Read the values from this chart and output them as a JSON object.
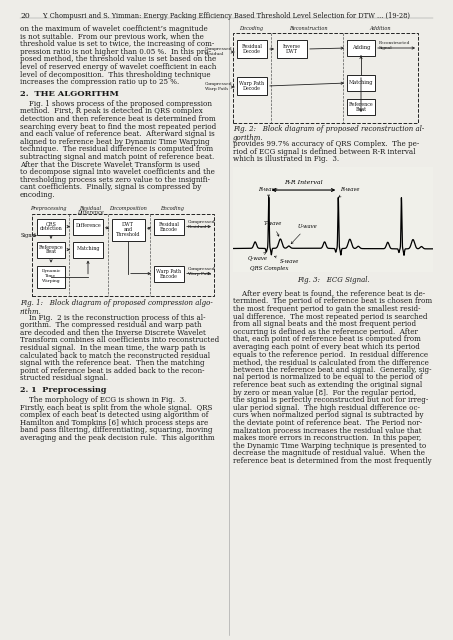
{
  "page_number": "20",
  "header": "Y. Chompusri and S. Yimman: Energy Packing Efficiency Based Threshold Level Selection for DTW ... (19-28)",
  "bg_color": "#eeede8",
  "left_para1": [
    "on the maximum of wavelet coefficient’s magnitude",
    "is not suitable.  From our previous work, when the",
    "threshold value is set to twice, the increasing of com-",
    "pression ratio is not higher than 0.05 %.  In this pro-",
    "posed method, the threshold value is set based on the",
    "level of reserved energy of wavelet coefficient in each",
    "level of decomposition.  This thresholding technique",
    "increases the compression ratio up to 25 %."
  ],
  "sec2_title": "2.  THE ALGORITHM",
  "left_para2": [
    "    Fig. 1 shows process of the proposed compression",
    "method.  First, R peak is detected in QRS complex",
    "detection and then reference beat is determined from",
    "searching every beat to find the most repeated period",
    "and each value of reference beat.  Afterward signal is",
    "aligned to reference beat by Dynamic Time Warping",
    "technique.  The residual difference is computed from",
    "subtracting signal and match point of reference beat.",
    "After that the Discrete Wavelet Transform is used",
    "to decompose signal into wavelet coefficients and the",
    "thresholding process sets zero value to the insignifi-",
    "cant coefficients.  Finally, signal is compressed by",
    "encoding."
  ],
  "fig1_cap": "Fig. 1:   Block diagram of proposed compression algo-\nrithm.",
  "left_para3": [
    "    In Fig.  2 is the reconstruction process of this al-",
    "gorithm.  The compressed residual and warp path",
    "are decoded and then the Inverse Discrete Wavelet",
    "Transform combines all coefficients into reconstructed",
    "residual signal.  In the mean time, the warp path is",
    "calculated back to match the reconstructed residual",
    "signal with the reference beat.  Then the matching",
    "point of reference beat is added back to the recon-",
    "structed residual signal."
  ],
  "sec21_title": "2. 1  Preprocessing",
  "left_para4": [
    "    The morphology of ECG is shown in Fig.  3.",
    "Firstly, each beat is split from the whole signal.  QRS",
    "complex of each beat is detected using algorithm of",
    "Hamilton and Tompkins [6] which process steps are",
    "band pass filtering, differentiating, squaring, moving",
    "averaging and the peak decision rule.  This algorithm"
  ],
  "right_para1": [
    "provides 99.7% accuracy of QRS Complex.  The pe-",
    "riod of ECG signal is defined between R-R interval",
    "which is illustrated in Fig.  3."
  ],
  "fig2_cap": "Fig. 2:   Block diagram of proposed reconstruction al-\ngorithm.",
  "fig3_cap": "Fig. 3:   ECG Signal.",
  "right_para2": [
    "    After every beat is found, the reference beat is de-",
    "termined.  The period of reference beat is chosen from",
    "the most frequent period to gain the smallest resid-",
    "ual difference.  The most repeated period is searched",
    "from all signal beats and the most frequent period",
    "occurring is defined as the reference period.  After",
    "that, each point of reference beat is computed from",
    "averaging each point of every beat which its period",
    "equals to the reference period.  In residual difference",
    "method, the residual is calculated from the difference",
    "between the reference beat and signal.  Generally, sig-",
    "nal period is normalized to be equal to the period of",
    "reference beat such as extending the original signal",
    "by zero or mean value [8].  For the regular period,",
    "the signal is perfectly reconstructed but not for irreg-",
    "ular period signal.  The high residual difference oc-",
    "curs when normalized period signal is subtracted by",
    "the deviate point of reference beat.  The Period nor-",
    "malization process increases the residual value that",
    "makes more errors in reconstruction.  In this paper,",
    "the Dynamic Time Warping technique is presented to",
    "decrease the magnitude of residual value.  When the",
    "reference beat is determined from the most frequently"
  ],
  "text_color": "#1a1a1a",
  "box_color": "#222222",
  "line_fs": 5.15,
  "lh": 7.6
}
